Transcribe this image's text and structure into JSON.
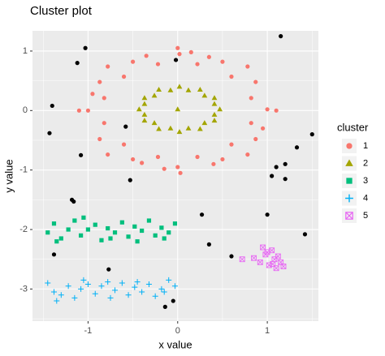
{
  "chart_data": {
    "type": "scatter",
    "title": "Cluster plot",
    "x_label": "x value",
    "y_label": "y value",
    "legend_title": "cluster",
    "grid": true,
    "xlim": [
      -1.62,
      1.57
    ],
    "ylim": [
      -3.54,
      1.34
    ],
    "xticks": [
      -1,
      0,
      1
    ],
    "yticks": [
      1,
      0,
      -1,
      -2,
      -3
    ],
    "series": [
      {
        "color": "#000000",
        "shape": "circle",
        "x": [
          1.15,
          -1.03,
          -1.12,
          -0.02,
          -1.4,
          -1.43,
          -0.58,
          -1.08,
          1.5,
          1.33,
          1.1,
          1.2,
          1.05,
          1.2,
          -0.53,
          -1.18,
          -1.16,
          1.0,
          0.27,
          0.35,
          1.42,
          0.6,
          -1.38,
          -0.77,
          -0.14,
          -0.05
        ],
        "values": [
          1.25,
          1.05,
          0.8,
          0.85,
          0.08,
          -0.38,
          -0.27,
          -0.75,
          -0.4,
          -0.62,
          -0.95,
          -0.9,
          -1.1,
          -1.15,
          -1.17,
          -1.5,
          -1.53,
          -1.75,
          -1.75,
          -2.25,
          -2.08,
          -2.45,
          -2.42,
          -2.67,
          -3.3,
          -3.2
        ]
      },
      {
        "name": "1",
        "color": "#F8766D",
        "shape": "circle",
        "x": [
          1.0,
          0.87,
          0.5,
          0.02,
          -0.5,
          -0.87,
          -1.0,
          -0.87,
          -0.5,
          0.0,
          0.5,
          0.87,
          0.82,
          0.6,
          0.22,
          -0.22,
          -0.6,
          -0.82,
          -0.82,
          -0.6,
          -0.22,
          0.22,
          0.6,
          0.82,
          1.1,
          0.78,
          0.0,
          -0.78,
          -1.1,
          -0.78,
          0.03,
          0.78,
          -0.35,
          0.35,
          -0.95,
          0.95,
          -0.4,
          0.4,
          0.15,
          -0.15
        ],
        "values": [
          0.02,
          0.48,
          0.82,
          0.95,
          0.82,
          0.48,
          0.0,
          -0.48,
          -0.82,
          -0.95,
          -0.82,
          -0.48,
          0.21,
          0.57,
          0.78,
          0.78,
          0.57,
          0.21,
          -0.21,
          -0.57,
          -0.78,
          -0.78,
          -0.57,
          -0.21,
          0.0,
          0.74,
          1.05,
          0.74,
          0.0,
          -0.74,
          -1.05,
          -0.74,
          0.92,
          0.9,
          0.28,
          -0.3,
          -0.88,
          -0.9,
          0.98,
          -0.98
        ]
      },
      {
        "name": "2",
        "color": "#A3A500",
        "shape": "triangle",
        "x": [
          0.47,
          0.41,
          0.25,
          0.02,
          -0.21,
          -0.37,
          -0.43,
          -0.37,
          -0.21,
          0.02,
          0.25,
          0.41,
          0.41,
          0.3,
          0.12,
          -0.08,
          -0.26,
          -0.37,
          -0.37,
          -0.26,
          -0.08,
          0.12,
          0.3,
          0.41,
          0.0
        ],
        "values": [
          0.02,
          0.21,
          0.35,
          0.4,
          0.35,
          0.21,
          0.02,
          -0.17,
          -0.31,
          -0.36,
          -0.31,
          -0.17,
          0.11,
          0.25,
          0.34,
          0.34,
          0.25,
          0.11,
          -0.07,
          -0.21,
          -0.3,
          -0.3,
          -0.21,
          -0.07,
          0.02
        ]
      },
      {
        "name": "3",
        "color": "#00BF7D",
        "shape": "square",
        "x": [
          -1.45,
          -1.38,
          -1.3,
          -1.22,
          -1.15,
          -1.08,
          -1.0,
          -0.92,
          -0.85,
          -0.78,
          -0.7,
          -0.62,
          -0.55,
          -0.48,
          -0.4,
          -0.32,
          -0.25,
          -0.18,
          -0.1,
          -0.03,
          -1.35,
          -1.05,
          -0.75,
          -0.45,
          -0.15
        ],
        "values": [
          -2.05,
          -1.9,
          -2.15,
          -2.0,
          -1.85,
          -2.1,
          -2.0,
          -1.92,
          -2.18,
          -1.98,
          -2.05,
          -1.88,
          -2.12,
          -1.95,
          -2.02,
          -1.85,
          -2.1,
          -1.97,
          -2.05,
          -1.9,
          -2.2,
          -1.8,
          -2.15,
          -2.2,
          -2.15
        ]
      },
      {
        "name": "4",
        "color": "#00B0F6",
        "shape": "plus",
        "x": [
          -1.45,
          -1.38,
          -1.3,
          -1.22,
          -1.15,
          -1.08,
          -1.0,
          -0.92,
          -0.85,
          -0.78,
          -0.7,
          -0.62,
          -0.55,
          -0.48,
          -0.4,
          -0.32,
          -0.25,
          -0.18,
          -0.1,
          -0.03,
          -1.35,
          -1.05,
          -0.75,
          -0.45,
          -0.15
        ],
        "values": [
          -2.9,
          -3.05,
          -3.1,
          -2.95,
          -3.15,
          -3.0,
          -2.92,
          -3.08,
          -2.95,
          -2.88,
          -3.02,
          -2.9,
          -3.1,
          -2.97,
          -3.05,
          -2.92,
          -3.12,
          -3.0,
          -2.85,
          -2.95,
          -3.2,
          -2.85,
          -3.15,
          -2.88,
          -3.05
        ]
      },
      {
        "name": "5",
        "color": "#E76BF3",
        "shape": "boxcross",
        "x": [
          0.72,
          0.85,
          0.92,
          0.98,
          1.02,
          1.05,
          1.08,
          1.1,
          1.12,
          1.15,
          1.18,
          0.95,
          1.0,
          1.06
        ],
        "values": [
          -2.5,
          -2.48,
          -2.55,
          -2.42,
          -2.6,
          -2.35,
          -2.5,
          -2.65,
          -2.45,
          -2.55,
          -2.62,
          -2.3,
          -2.38,
          -2.58
        ]
      }
    ]
  }
}
